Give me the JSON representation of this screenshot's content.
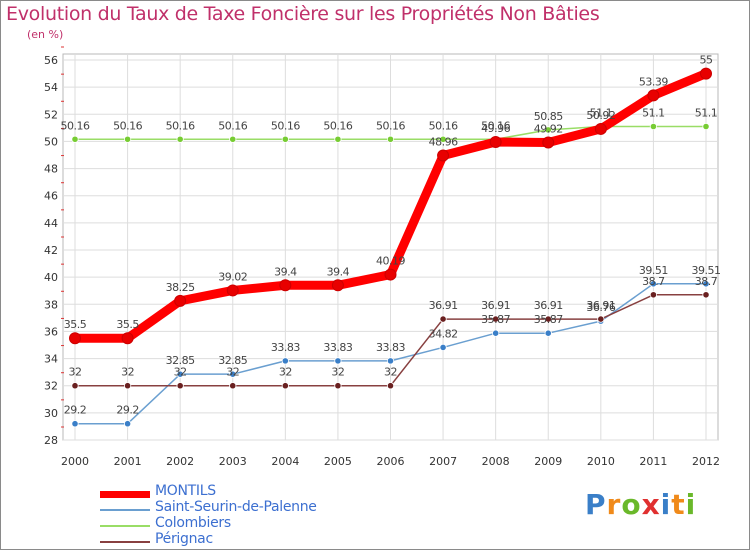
{
  "chart_data": {
    "type": "line",
    "title": "Evolution du Taux de Taxe Foncière sur les Propriétés Non Bâties",
    "unit_label": "(en %)",
    "x": [
      "2000",
      "2001",
      "2002",
      "2003",
      "2004",
      "2005",
      "2006",
      "2007",
      "2008",
      "2009",
      "2010",
      "2011",
      "2012"
    ],
    "ylim": [
      28,
      56
    ],
    "yticks": [
      28,
      30,
      32,
      34,
      36,
      38,
      40,
      42,
      44,
      46,
      48,
      50,
      52,
      54,
      56
    ],
    "series": [
      {
        "name": "MONTILS",
        "color": "#ff0000",
        "marker": "#e80000",
        "width": 9,
        "values": [
          35.5,
          35.5,
          38.25,
          39.02,
          39.4,
          39.4,
          40.19,
          48.96,
          49.96,
          49.92,
          50.92,
          53.39,
          55
        ],
        "labels": [
          "35.5",
          "35.5",
          "38.25",
          "39.02",
          "39.4",
          "39.4",
          "40.19",
          "48.96",
          "49.96",
          "49.92",
          "50.92",
          "53.39",
          "55"
        ]
      },
      {
        "name": "Saint-Seurin-de-Palenne",
        "color": "#6a9fd0",
        "marker": "#3a7fc8",
        "width": 1.5,
        "values": [
          29.2,
          29.2,
          32.85,
          32.85,
          33.83,
          33.83,
          33.83,
          34.82,
          35.87,
          35.87,
          36.76,
          39.51,
          39.51
        ],
        "labels": [
          "29.2",
          "29.2",
          "32.85",
          "32.85",
          "33.83",
          "33.83",
          "33.83",
          "34.82",
          "35.87",
          "35.87",
          "36.76",
          "39.51",
          "39.51"
        ]
      },
      {
        "name": "Colombiers",
        "color": "#99dd66",
        "marker": "#77cc33",
        "width": 1.5,
        "values": [
          50.16,
          50.16,
          50.16,
          50.16,
          50.16,
          50.16,
          50.16,
          50.16,
          50.16,
          50.85,
          51.1,
          51.1,
          51.1
        ],
        "labels": [
          "50.16",
          "50.16",
          "50.16",
          "50.16",
          "50.16",
          "50.16",
          "50.16",
          "50.16",
          "50.16",
          "50.85",
          "51.1",
          "51.1",
          "51.1"
        ]
      },
      {
        "name": "Pérignac",
        "color": "#884040",
        "marker": "#6a2020",
        "width": 1.5,
        "values": [
          32,
          32,
          32,
          32,
          32,
          32,
          32,
          36.91,
          36.91,
          36.91,
          36.91,
          38.7,
          38.7
        ],
        "labels": [
          "32",
          "32",
          "32",
          "32",
          "32",
          "32",
          "32",
          "36.91",
          "36.91",
          "36.91",
          "36.91",
          "38.7",
          "38.7"
        ]
      }
    ]
  },
  "logo": {
    "letters": [
      "P",
      "r",
      "o",
      "x",
      "i",
      "t",
      "i"
    ],
    "colors": [
      "#3a7fc8",
      "#f08a1a",
      "#6ab82a",
      "#e03030",
      "#3a7fc8",
      "#f08a1a",
      "#6ab82a"
    ]
  }
}
